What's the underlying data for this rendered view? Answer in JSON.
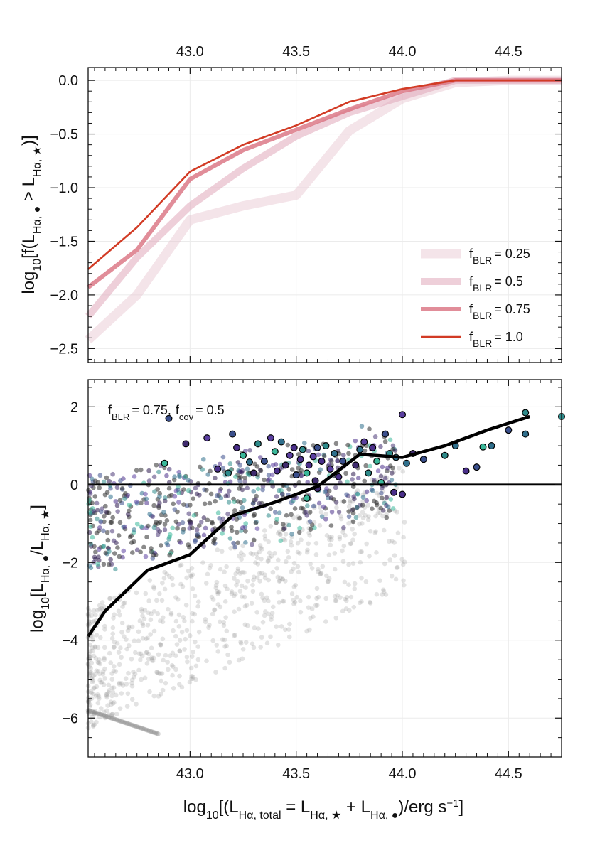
{
  "chart_data": [
    {
      "type": "line",
      "xlabel": "",
      "ylabel": "log10[f(LHα,● > LHα,★)]",
      "ylabel_parts": {
        "pre": "log",
        "sub1": "10",
        "mid1": "[f(L",
        "sub2": "Hα, ●",
        "mid2": " > L",
        "sub3": "Hα, ★",
        "post": ")]"
      },
      "xlim": [
        42.52,
        44.75
      ],
      "ylim": [
        -2.63,
        0.12
      ],
      "xticks": [
        43.0,
        43.5,
        44.0,
        44.5
      ],
      "xtick_labels": [
        "43.0",
        "43.5",
        "44.0",
        "44.5"
      ],
      "xaxis_position": "top",
      "yticks": [
        0.0,
        -0.5,
        -1.0,
        -1.5,
        -2.0,
        -2.5
      ],
      "ytick_labels": [
        "0.0",
        "−0.5",
        "−1.0",
        "−1.5",
        "−2.0",
        "−2.5"
      ],
      "grid": true,
      "legend_position": "lower-right",
      "series": [
        {
          "name": "fBLR = 0.25",
          "label_sub": "BLR",
          "label_value": "= 0.25",
          "color": "#e6c3cf",
          "opacity": 0.45,
          "width": "widest",
          "x": [
            42.5,
            42.75,
            43.0,
            43.25,
            43.5,
            43.75,
            44.0,
            44.25,
            44.5,
            44.75
          ],
          "y": [
            -2.42,
            -2.0,
            -1.3,
            -1.17,
            -1.07,
            -0.47,
            -0.17,
            -0.02,
            0.0,
            0.0
          ]
        },
        {
          "name": "fBLR = 0.5",
          "label_sub": "BLR",
          "label_value": "= 0.5",
          "color": "#e0a8ba",
          "opacity": 0.55,
          "width": "wide",
          "x": [
            42.5,
            42.75,
            43.0,
            43.25,
            43.5,
            43.75,
            44.0,
            44.25,
            44.5,
            44.75
          ],
          "y": [
            -2.2,
            -1.65,
            -1.17,
            -0.82,
            -0.52,
            -0.3,
            -0.15,
            0.0,
            0.0,
            0.0
          ]
        },
        {
          "name": "fBLR = 0.75",
          "label_sub": "BLR",
          "label_value": "= 0.75",
          "color": "#d9707f",
          "opacity": 0.8,
          "width": "medium",
          "x": [
            42.5,
            42.75,
            43.0,
            43.25,
            43.5,
            43.75,
            44.0,
            44.25,
            44.5,
            44.75
          ],
          "y": [
            -1.93,
            -1.58,
            -0.92,
            -0.65,
            -0.46,
            -0.27,
            -0.1,
            0.0,
            0.0,
            0.0
          ]
        },
        {
          "name": "fBLR = 1.0",
          "label_sub": "BLR",
          "label_value": "= 1.0",
          "color": "#d23b25",
          "opacity": 1.0,
          "width": "thin",
          "x": [
            42.5,
            42.75,
            43.0,
            43.25,
            43.5,
            43.75,
            44.0,
            44.25,
            44.5,
            44.75
          ],
          "y": [
            -1.76,
            -1.37,
            -0.85,
            -0.6,
            -0.42,
            -0.2,
            -0.08,
            0.0,
            0.0,
            0.0
          ]
        }
      ]
    },
    {
      "type": "scatter",
      "xlabel": "log10[(LHα,total = LHα,★ + LHα,●)/erg s−1]",
      "xlabel_parts": {
        "pre": "log",
        "sub1": "10",
        "mid1": "[(L",
        "sub2": "Hα, total",
        "mid2": " = L",
        "sub3": "Hα, ★",
        "mid3": " + L",
        "sub4": "Hα, ●",
        "mid4": ")/erg s",
        "sup": "−1",
        "post": "]"
      },
      "ylabel": "log10[LHα,●/LHα,★]",
      "ylabel_parts": {
        "pre": "log",
        "sub1": "10",
        "mid1": "[L",
        "sub2": "Hα, ●",
        "mid2": "/L",
        "sub3": "Hα, ★",
        "post": "]"
      },
      "xlim": [
        42.52,
        44.75
      ],
      "ylim": [
        -7.0,
        2.7
      ],
      "xticks": [
        43.0,
        43.5,
        44.0,
        44.5
      ],
      "xtick_labels": [
        "43.0",
        "43.5",
        "44.0",
        "44.5"
      ],
      "yticks": [
        2,
        0,
        -2,
        -4,
        -6
      ],
      "ytick_labels": [
        "2",
        "0",
        "−2",
        "−4",
        "−6"
      ],
      "grid": true,
      "annotation": {
        "f_label": "f",
        "blr_sub": "BLR",
        "blr_value": "= 0.75,",
        "cov_sub": "cov",
        "cov_value": "= 0.5"
      },
      "reference_line": {
        "y": 0,
        "color": "#000000"
      },
      "median_line": {
        "color": "#000000",
        "x": [
          42.52,
          42.6,
          42.8,
          43.0,
          43.2,
          43.4,
          43.6,
          43.8,
          44.0,
          44.2,
          44.4,
          44.6
        ],
        "y": [
          -3.9,
          -3.25,
          -2.2,
          -1.8,
          -0.8,
          -0.45,
          -0.05,
          0.78,
          0.7,
          1.0,
          1.4,
          1.75
        ]
      },
      "palette": [
        "#2b1a4e",
        "#3f2b6e",
        "#4a2f8a",
        "#5b3fa0",
        "#3a4f8c",
        "#2f6f8c",
        "#2e8a8a",
        "#3bb89a",
        "#4c3a78"
      ],
      "highlighted_points": [
        {
          "x": 42.9,
          "y": 1.7,
          "c": 4
        },
        {
          "x": 42.98,
          "y": 1.05,
          "c": 1
        },
        {
          "x": 42.88,
          "y": 0.55,
          "c": 7
        },
        {
          "x": 43.08,
          "y": 1.2,
          "c": 3
        },
        {
          "x": 43.13,
          "y": 0.4,
          "c": 2
        },
        {
          "x": 43.18,
          "y": 0.3,
          "c": 6
        },
        {
          "x": 43.2,
          "y": 1.3,
          "c": 4
        },
        {
          "x": 43.22,
          "y": 0.95,
          "c": 2
        },
        {
          "x": 43.25,
          "y": 0.75,
          "c": 7
        },
        {
          "x": 43.28,
          "y": 0.58,
          "c": 5
        },
        {
          "x": 43.3,
          "y": 0.3,
          "c": 1
        },
        {
          "x": 43.32,
          "y": 1.05,
          "c": 6
        },
        {
          "x": 43.35,
          "y": 0.6,
          "c": 4
        },
        {
          "x": 43.38,
          "y": 1.2,
          "c": 3
        },
        {
          "x": 43.4,
          "y": 0.85,
          "c": 7
        },
        {
          "x": 43.41,
          "y": 0.35,
          "c": 2
        },
        {
          "x": 43.43,
          "y": 1.1,
          "c": 5
        },
        {
          "x": 43.45,
          "y": 0.5,
          "c": 1
        },
        {
          "x": 43.47,
          "y": 0.75,
          "c": 3
        },
        {
          "x": 43.49,
          "y": 0.95,
          "c": 2
        },
        {
          "x": 43.5,
          "y": 0.25,
          "c": 4
        },
        {
          "x": 43.52,
          "y": 0.65,
          "c": 2
        },
        {
          "x": 43.53,
          "y": 0.9,
          "c": 6
        },
        {
          "x": 43.55,
          "y": 0.3,
          "c": 7
        },
        {
          "x": 43.56,
          "y": 0.5,
          "c": 2
        },
        {
          "x": 43.58,
          "y": 0.72,
          "c": 3
        },
        {
          "x": 43.59,
          "y": 0.1,
          "c": 1
        },
        {
          "x": 43.6,
          "y": 0.95,
          "c": 4
        },
        {
          "x": 43.62,
          "y": 0.6,
          "c": 2
        },
        {
          "x": 43.64,
          "y": 1.0,
          "c": 6
        },
        {
          "x": 43.66,
          "y": 0.4,
          "c": 3
        },
        {
          "x": 43.68,
          "y": 0.8,
          "c": 5
        },
        {
          "x": 43.7,
          "y": 0.2,
          "c": 2
        },
        {
          "x": 43.72,
          "y": 0.6,
          "c": 4
        },
        {
          "x": 43.78,
          "y": 0.5,
          "c": 1
        },
        {
          "x": 43.8,
          "y": 0.9,
          "c": 5
        },
        {
          "x": 43.82,
          "y": 1.1,
          "c": 3
        },
        {
          "x": 43.84,
          "y": 0.3,
          "c": 6
        },
        {
          "x": 43.86,
          "y": 0.95,
          "c": 2
        },
        {
          "x": 43.88,
          "y": 0.6,
          "c": 7
        },
        {
          "x": 43.9,
          "y": 0.05,
          "c": 7
        },
        {
          "x": 43.92,
          "y": 1.3,
          "c": 4
        },
        {
          "x": 43.94,
          "y": 0.8,
          "c": 6
        },
        {
          "x": 43.96,
          "y": -0.2,
          "c": 2
        },
        {
          "x": 43.97,
          "y": 0.7,
          "c": 5
        },
        {
          "x": 44.0,
          "y": 1.8,
          "c": 3
        },
        {
          "x": 44.0,
          "y": -0.25,
          "c": 2
        },
        {
          "x": 44.02,
          "y": 0.55,
          "c": 5
        },
        {
          "x": 44.05,
          "y": 0.8,
          "c": 1
        },
        {
          "x": 44.1,
          "y": 0.65,
          "c": 4
        },
        {
          "x": 44.2,
          "y": 0.75,
          "c": 6
        },
        {
          "x": 44.25,
          "y": 1.0,
          "c": 5
        },
        {
          "x": 44.3,
          "y": 0.35,
          "c": 2
        },
        {
          "x": 44.35,
          "y": 0.45,
          "c": 4
        },
        {
          "x": 44.38,
          "y": 0.97,
          "c": 7
        },
        {
          "x": 44.42,
          "y": 1.0,
          "c": 5
        },
        {
          "x": 44.5,
          "y": 1.4,
          "c": 4
        },
        {
          "x": 44.58,
          "y": 1.85,
          "c": 6
        },
        {
          "x": 44.58,
          "y": 1.3,
          "c": 5
        },
        {
          "x": 44.75,
          "y": 1.75,
          "c": 6
        },
        {
          "x": 43.55,
          "y": -0.35,
          "c": 7
        },
        {
          "x": 43.6,
          "y": -0.1,
          "c": 1
        }
      ]
    }
  ]
}
